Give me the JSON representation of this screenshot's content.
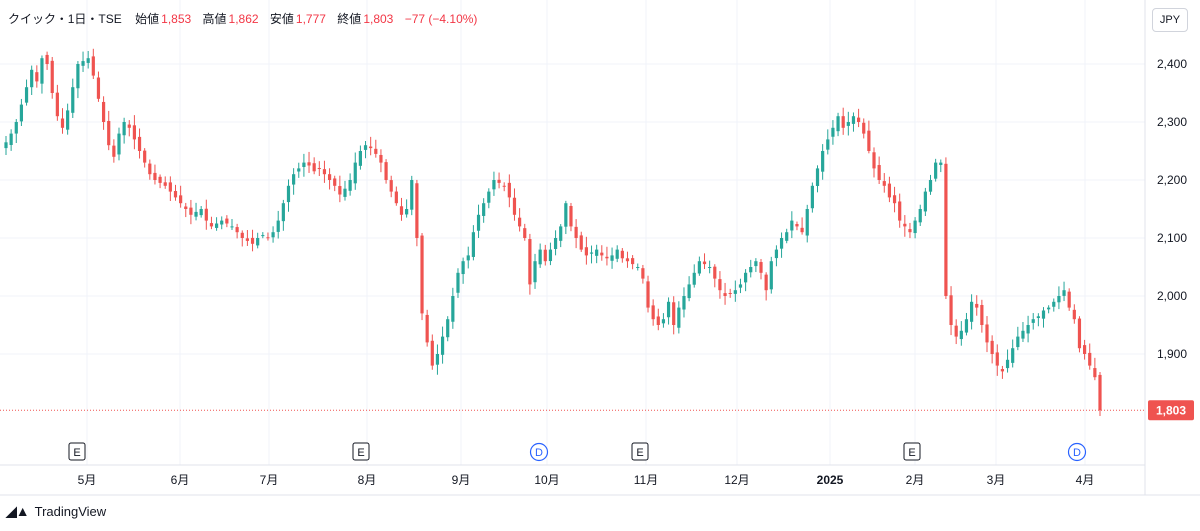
{
  "legend": {
    "symbol": "クイック・1日・TSE",
    "open_label": "始値",
    "open": "1,853",
    "high_label": "高値",
    "high": "1,862",
    "low_label": "安値",
    "low": "1,777",
    "close_label": "終値",
    "close": "1,803",
    "change": "−77 (−4.10%)"
  },
  "currency": "JPY",
  "brand": "TradingView",
  "colors": {
    "up": "#26a69a",
    "down": "#ef5350",
    "grid": "#f0f3fa",
    "axis_text": "#131722",
    "last_price": "#ef5350",
    "dividend_marker": "#2962ff"
  },
  "chart_data": {
    "type": "candlestick",
    "title": "",
    "ylim": [
      1760,
      2450
    ],
    "y_ticks": [
      "2,400",
      "2,300",
      "2,200",
      "2,100",
      "2,000",
      "1,900"
    ],
    "y_tick_values": [
      2400,
      2300,
      2200,
      2100,
      2000,
      1900
    ],
    "x_tick_labels": [
      "5月",
      "6月",
      "7月",
      "8月",
      "9月",
      "10月",
      "11月",
      "12月",
      "2025",
      "2月",
      "3月",
      "4月"
    ],
    "last_price": 1803,
    "last_price_label": "1,803",
    "events": [
      {
        "type": "E",
        "label": "E",
        "after_tick": "5月",
        "offset_days": -3
      },
      {
        "type": "E",
        "label": "E",
        "after_tick": "8月",
        "offset_days": -3
      },
      {
        "type": "D",
        "label": "D",
        "after_tick": "10月",
        "offset_days": -2
      },
      {
        "type": "E",
        "label": "E",
        "after_tick": "11月",
        "offset_days": -2
      },
      {
        "type": "E",
        "label": "E",
        "after_tick": "2月",
        "offset_days": -1
      },
      {
        "type": "D",
        "label": "D",
        "after_tick": "4月",
        "offset_days": -2
      }
    ],
    "close_path": [
      2265,
      2280,
      2300,
      2330,
      2360,
      2390,
      2370,
      2410,
      2400,
      2350,
      2310,
      2290,
      2320,
      2360,
      2400,
      2405,
      2410,
      2380,
      2340,
      2300,
      2260,
      2240,
      2280,
      2300,
      2290,
      2270,
      2250,
      2230,
      2210,
      2200,
      2195,
      2190,
      2180,
      2170,
      2160,
      2150,
      2140,
      2145,
      2150,
      2130,
      2120,
      2125,
      2130,
      2125,
      2120,
      2110,
      2100,
      2095,
      2090,
      2100,
      2105,
      2100,
      2110,
      2130,
      2160,
      2190,
      2210,
      2220,
      2230,
      2225,
      2215,
      2220,
      2210,
      2200,
      2190,
      2175,
      2185,
      2200,
      2230,
      2250,
      2260,
      2255,
      2245,
      2230,
      2200,
      2180,
      2160,
      2140,
      2150,
      2200,
      2100,
      1970,
      1920,
      1880,
      1900,
      1930,
      1960,
      2000,
      2040,
      2060,
      2070,
      2110,
      2140,
      2160,
      2180,
      2200,
      2195,
      2190,
      2170,
      2140,
      2120,
      2100,
      2020,
      2060,
      2080,
      2060,
      2080,
      2100,
      2120,
      2160,
      2120,
      2100,
      2080,
      2070,
      2075,
      2080,
      2070,
      2065,
      2070,
      2080,
      2065,
      2060,
      2055,
      2050,
      2030,
      1980,
      1960,
      1950,
      1960,
      1990,
      1950,
      1980,
      2000,
      2020,
      2040,
      2060,
      2055,
      2050,
      2030,
      2010,
      2000,
      2005,
      2010,
      2020,
      2040,
      2050,
      2060,
      2040,
      2010,
      2060,
      2080,
      2100,
      2110,
      2130,
      2120,
      2110,
      2150,
      2190,
      2220,
      2250,
      2270,
      2290,
      2310,
      2290,
      2300,
      2310,
      2300,
      2280,
      2250,
      2220,
      2200,
      2190,
      2170,
      2160,
      2130,
      2120,
      2110,
      2130,
      2150,
      2180,
      2200,
      2230,
      2230,
      2000,
      1950,
      1930,
      1940,
      1960,
      1990,
      1980,
      1950,
      1920,
      1900,
      1880,
      1870,
      1890,
      1910,
      1930,
      1940,
      1950,
      1960,
      1965,
      1975,
      1980,
      1990,
      2000,
      2010,
      1980,
      1960,
      1910,
      1900,
      1880,
      1860,
      1803
    ]
  }
}
